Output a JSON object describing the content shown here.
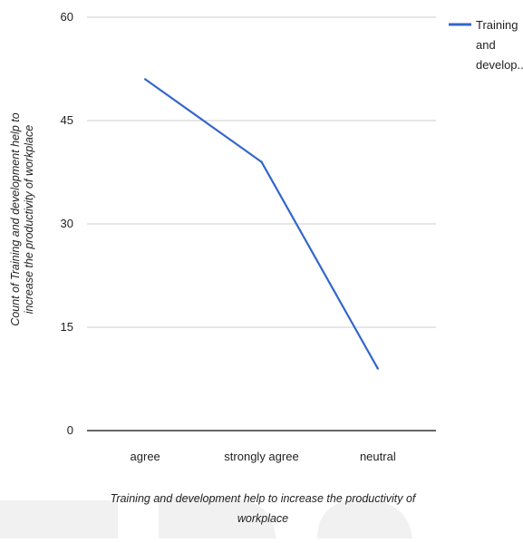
{
  "chart_data": {
    "type": "line",
    "title": "",
    "categories": [
      "agree",
      "strongly agree",
      "neutral"
    ],
    "series": [
      {
        "name": "Training and develop...",
        "values": [
          51,
          39,
          9
        ],
        "color": "#3366cc"
      }
    ],
    "xlabel": "Training and development help to increase the productivity of workplace",
    "xlabel_lines": [
      "Training and development help to increase the productivity of",
      "workplace"
    ],
    "ylabel": "Count of Training and development help to increase the productivity of workplace",
    "ylabel_lines": [
      "Count of Training and development help to",
      "increase the productivity of workplace"
    ],
    "ylim": [
      0,
      60
    ],
    "yticks": [
      0,
      15,
      30,
      45,
      60
    ],
    "grid": true,
    "legend_position": "right",
    "legend_lines": [
      "Training",
      "and",
      "develop..."
    ],
    "colors": {
      "gridline": "#cccccc",
      "baseline": "#333333",
      "text": "#222222"
    }
  }
}
